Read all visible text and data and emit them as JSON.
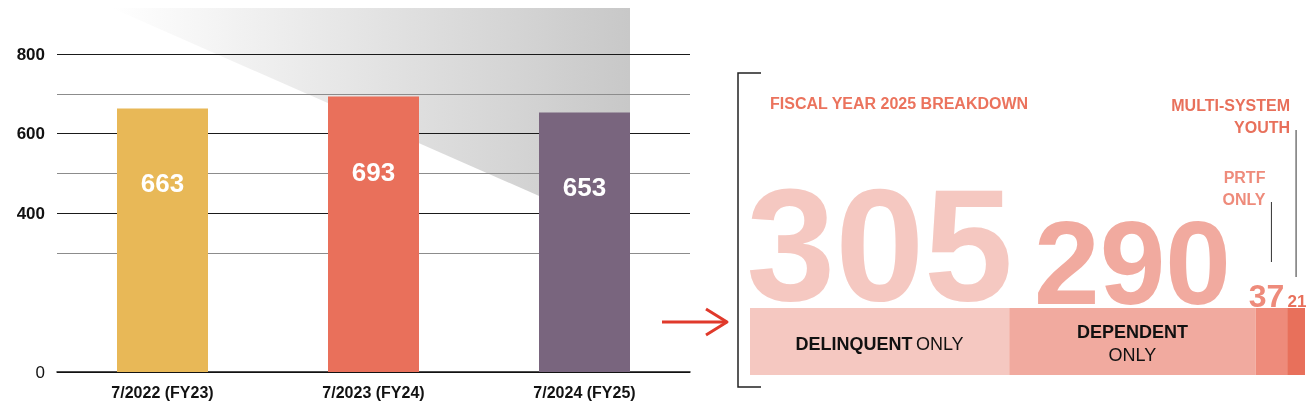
{
  "chart_data": [
    {
      "type": "bar",
      "categories": [
        "7/2022 (FY23)",
        "7/2023 (FY24)",
        "7/2024 (FY25)"
      ],
      "values": [
        663,
        693,
        653
      ],
      "colors": [
        "#e8b857",
        "#e9705b",
        "#79657e"
      ],
      "ylim": [
        0,
        800
      ],
      "yticks": [
        0,
        {
          "value": 300,
          "label": null
        },
        400,
        {
          "value": 500,
          "label": null
        },
        600,
        {
          "value": 700,
          "label": null
        },
        800
      ],
      "grid": "y",
      "data_labels": true
    },
    {
      "type": "bar",
      "orientation": "horizontal",
      "stacked": true,
      "title": "FISCAL YEAR 2025 BREAKDOWN",
      "categories": [
        null
      ],
      "series": [
        {
          "name": "DELINQUENT ONLY",
          "color": "#f5c8c1",
          "values": [
            305
          ]
        },
        {
          "name": "DEPENDENT ONLY",
          "color": "#f1aa9f",
          "values": [
            290
          ]
        },
        {
          "name": "PRTF ONLY",
          "color": "#ee8b7b",
          "values": [
            37
          ]
        },
        {
          "name": "MULTI-SYSTEM YOUTH",
          "color": "#e8705b",
          "values": [
            21
          ]
        }
      ],
      "data_labels": true,
      "tick_labels": false
    }
  ]
}
